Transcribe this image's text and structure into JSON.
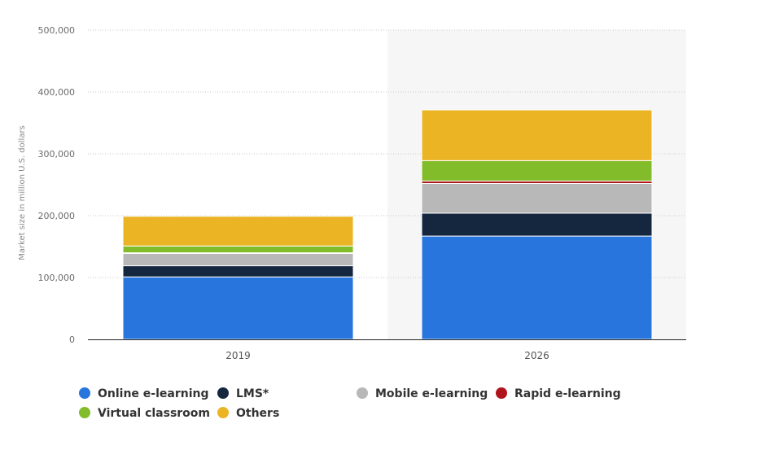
{
  "chart_data": {
    "type": "bar",
    "stacked": true,
    "categories": [
      "2019",
      "2026"
    ],
    "highlighted_category": "2026",
    "ylabel": "Market size in million U.S. dollars",
    "xlabel": "",
    "ylim": [
      0,
      500000
    ],
    "yticks": [
      0,
      100000,
      200000,
      300000,
      400000,
      500000
    ],
    "ytick_labels": [
      "0",
      "100,000",
      "200,000",
      "300,000",
      "400,000",
      "500,000"
    ],
    "grid": true,
    "legend_position": "bottom-left",
    "series": [
      {
        "name": "Online e-learning",
        "color": "#2876dd",
        "values": [
          101000,
          167000
        ]
      },
      {
        "name": "LMS*",
        "color": "#14273f",
        "values": [
          18000,
          37000
        ]
      },
      {
        "name": "Mobile e-learning",
        "color": "#b8b8b8",
        "values": [
          20000,
          48000
        ]
      },
      {
        "name": "Rapid e-learning",
        "color": "#b0141b",
        "values": [
          1000,
          4000
        ]
      },
      {
        "name": "Virtual classroom",
        "color": "#82bc2a",
        "values": [
          11000,
          33000
        ]
      },
      {
        "name": "Others",
        "color": "#ebb424",
        "values": [
          48000,
          82000
        ]
      }
    ]
  }
}
